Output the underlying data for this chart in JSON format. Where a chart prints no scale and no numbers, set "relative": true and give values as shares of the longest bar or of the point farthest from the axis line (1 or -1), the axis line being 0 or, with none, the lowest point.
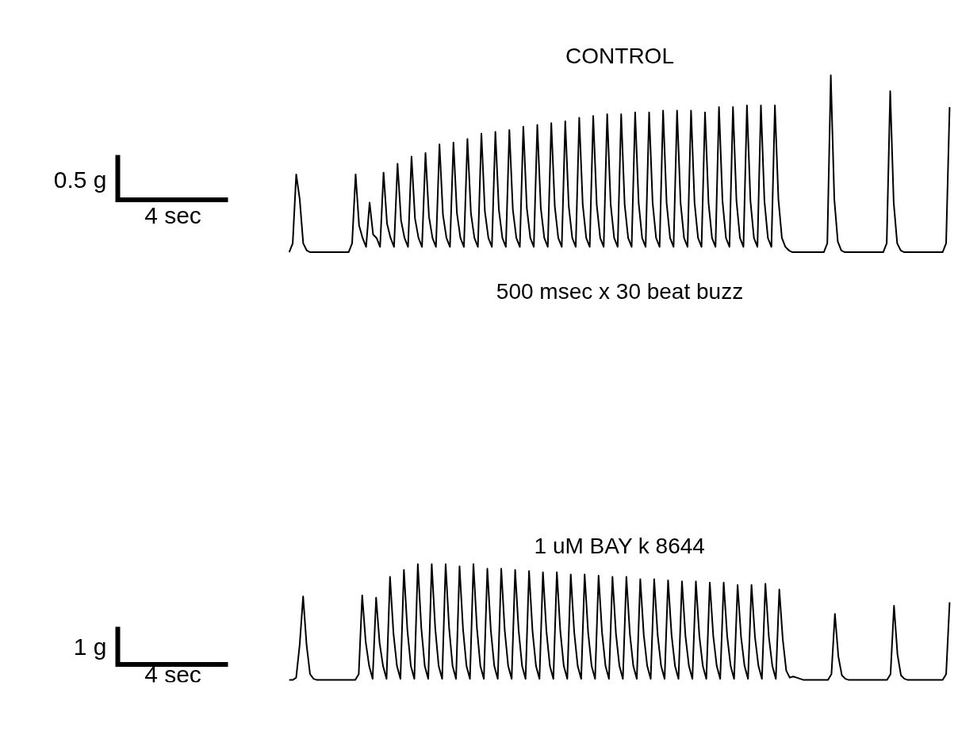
{
  "chart_data": [
    {
      "type": "line",
      "title": "CONTROL",
      "relative": true,
      "tick_labels": false,
      "annotations": [
        "0.5 g",
        "4 sec",
        "500 msec x 30 beat buzz"
      ],
      "categories": [
        null,
        null,
        null,
        null,
        null,
        null,
        null,
        null,
        null,
        null,
        null,
        null,
        null,
        null,
        null,
        null,
        null,
        null,
        null,
        null,
        null,
        null,
        null,
        null,
        null,
        null,
        null,
        null,
        null,
        null,
        null,
        null,
        null,
        null,
        null,
        null,
        null,
        null,
        null,
        null,
        null,
        null,
        null,
        null,
        null,
        null,
        null,
        null,
        null,
        null,
        null,
        null,
        null,
        null,
        null,
        null,
        null,
        null,
        null,
        null,
        null,
        null,
        null,
        null,
        null,
        null,
        null,
        null,
        null,
        null,
        null,
        null,
        null,
        null,
        null,
        null,
        null,
        null,
        null,
        null,
        null,
        null,
        null,
        null,
        null,
        null,
        null,
        null,
        null,
        null,
        null,
        null,
        null,
        null,
        null,
        null,
        null,
        null,
        null,
        null,
        null,
        null,
        null,
        null,
        null,
        null,
        null,
        null,
        null,
        null,
        null,
        null,
        null,
        null,
        null,
        null,
        null,
        null,
        null,
        null,
        null,
        null,
        null,
        null,
        null,
        null,
        null,
        null,
        null,
        null,
        null,
        null,
        null,
        null,
        null,
        null,
        null,
        null,
        null,
        null,
        null,
        null,
        null,
        null,
        null,
        null,
        null,
        null,
        null,
        null,
        null,
        null,
        null,
        null,
        null,
        null,
        null,
        null,
        null,
        null,
        null,
        null,
        null,
        null,
        null,
        null,
        null,
        null,
        null,
        null,
        null,
        null,
        null,
        null,
        null,
        null,
        null,
        null,
        null,
        null,
        null,
        null,
        null,
        null,
        null,
        null,
        null,
        null,
        null,
        null
      ],
      "series": [
        {
          "color": "#000000",
          "values": [
            0,
            0.05,
            0.44,
            0.3,
            0.05,
            0.01,
            0,
            0,
            0,
            0,
            0,
            0,
            0,
            0,
            0,
            0,
            0,
            0,
            0.05,
            0.44,
            0.15,
            0.08,
            0.03,
            0.28,
            0.1,
            0.08,
            0.03,
            0.45,
            0.16,
            0.08,
            0.03,
            0.5,
            0.18,
            0.08,
            0.03,
            0.54,
            0.19,
            0.08,
            0.03,
            0.56,
            0.2,
            0.08,
            0.03,
            0.61,
            0.21,
            0.08,
            0.03,
            0.62,
            0.22,
            0.08,
            0.03,
            0.64,
            0.22,
            0.08,
            0.03,
            0.67,
            0.23,
            0.08,
            0.03,
            0.68,
            0.24,
            0.08,
            0.03,
            0.69,
            0.24,
            0.08,
            0.03,
            0.71,
            0.25,
            0.08,
            0.03,
            0.72,
            0.25,
            0.08,
            0.03,
            0.73,
            0.26,
            0.08,
            0.03,
            0.74,
            0.26,
            0.08,
            0.03,
            0.76,
            0.27,
            0.08,
            0.03,
            0.77,
            0.27,
            0.08,
            0.03,
            0.78,
            0.27,
            0.08,
            0.03,
            0.78,
            0.27,
            0.08,
            0.03,
            0.79,
            0.28,
            0.08,
            0.03,
            0.79,
            0.28,
            0.08,
            0.03,
            0.8,
            0.28,
            0.08,
            0.03,
            0.8,
            0.28,
            0.08,
            0.03,
            0.8,
            0.28,
            0.08,
            0.03,
            0.79,
            0.28,
            0.08,
            0.03,
            0.82,
            0.29,
            0.08,
            0.03,
            0.82,
            0.29,
            0.08,
            0.03,
            0.83,
            0.29,
            0.08,
            0.03,
            0.83,
            0.29,
            0.08,
            0.03,
            0.83,
            0.3,
            0.08,
            0.03,
            0.01,
            0,
            0,
            0,
            0,
            0,
            0,
            0,
            0,
            0,
            0,
            0.05,
            1.0,
            0.3,
            0.06,
            0.01,
            0,
            0,
            0,
            0,
            0,
            0,
            0,
            0,
            0,
            0,
            0,
            0,
            0.05,
            0.91,
            0.28,
            0.05,
            0.01,
            0,
            0,
            0,
            0,
            0,
            0,
            0,
            0,
            0,
            0,
            0,
            0,
            0.05,
            0.82
          ]
        }
      ]
    },
    {
      "type": "line",
      "title": "1 uM BAY k 8644",
      "relative": true,
      "tick_labels": false,
      "annotations": [
        "1 g",
        "4 sec"
      ],
      "categories": [
        null,
        null,
        null,
        null,
        null,
        null,
        null,
        null,
        null,
        null,
        null,
        null,
        null,
        null,
        null,
        null,
        null,
        null,
        null,
        null,
        null,
        null,
        null,
        null,
        null,
        null,
        null,
        null,
        null,
        null,
        null,
        null,
        null,
        null,
        null,
        null,
        null,
        null,
        null,
        null,
        null,
        null,
        null,
        null,
        null,
        null,
        null,
        null,
        null,
        null,
        null,
        null,
        null,
        null,
        null,
        null,
        null,
        null,
        null,
        null,
        null,
        null,
        null,
        null,
        null,
        null,
        null,
        null,
        null,
        null,
        null,
        null,
        null,
        null,
        null,
        null,
        null,
        null,
        null,
        null,
        null,
        null,
        null,
        null,
        null,
        null,
        null,
        null,
        null,
        null,
        null,
        null,
        null,
        null,
        null,
        null,
        null,
        null,
        null,
        null,
        null,
        null,
        null,
        null,
        null,
        null,
        null,
        null,
        null,
        null,
        null,
        null,
        null,
        null,
        null,
        null,
        null,
        null,
        null,
        null,
        null,
        null,
        null,
        null,
        null,
        null,
        null,
        null,
        null,
        null,
        null,
        null,
        null,
        null,
        null,
        null,
        null,
        null,
        null,
        null,
        null,
        null,
        null,
        null,
        null,
        null,
        null,
        null,
        null,
        null,
        null,
        null,
        null,
        null,
        null,
        null,
        null,
        null,
        null,
        null,
        null,
        null,
        null,
        null,
        null,
        null,
        null,
        null,
        null,
        null,
        null,
        null,
        null,
        null,
        null,
        null,
        null,
        null,
        null,
        null,
        null,
        null,
        null,
        null,
        null,
        null,
        null,
        null,
        null,
        null,
        null
      ],
      "series": [
        {
          "color": "#000000",
          "values": [
            0,
            0,
            0.02,
            0.3,
            0.72,
            0.3,
            0.05,
            0.01,
            0,
            0,
            0,
            0,
            0,
            0,
            0,
            0,
            0,
            0,
            0,
            0,
            0.05,
            0.73,
            0.33,
            0.12,
            0.01,
            0.71,
            0.32,
            0.12,
            0.01,
            0.89,
            0.4,
            0.12,
            0.01,
            0.95,
            0.43,
            0.12,
            0.01,
            1.0,
            0.45,
            0.12,
            0.01,
            1.0,
            0.45,
            0.12,
            0.01,
            1.0,
            0.45,
            0.12,
            0.01,
            0.98,
            0.44,
            0.12,
            0.01,
            1.0,
            0.45,
            0.12,
            0.01,
            0.96,
            0.43,
            0.12,
            0.01,
            0.96,
            0.43,
            0.12,
            0.01,
            0.95,
            0.43,
            0.12,
            0.01,
            0.94,
            0.42,
            0.12,
            0.01,
            0.93,
            0.42,
            0.12,
            0.01,
            0.93,
            0.42,
            0.12,
            0.01,
            0.91,
            0.41,
            0.12,
            0.01,
            0.91,
            0.41,
            0.12,
            0.01,
            0.9,
            0.41,
            0.12,
            0.01,
            0.89,
            0.4,
            0.12,
            0.01,
            0.89,
            0.4,
            0.12,
            0.01,
            0.87,
            0.39,
            0.12,
            0.01,
            0.87,
            0.39,
            0.12,
            0.01,
            0.86,
            0.39,
            0.12,
            0.01,
            0.85,
            0.38,
            0.12,
            0.01,
            0.85,
            0.38,
            0.12,
            0.01,
            0.84,
            0.38,
            0.12,
            0.01,
            0.84,
            0.38,
            0.12,
            0.01,
            0.82,
            0.37,
            0.12,
            0.01,
            0.82,
            0.37,
            0.12,
            0.01,
            0.83,
            0.37,
            0.12,
            0.01,
            0.78,
            0.35,
            0.08,
            0.02,
            0.03,
            0.02,
            0.01,
            0,
            0,
            0,
            0,
            0,
            0,
            0,
            0,
            0.05,
            0.57,
            0.2,
            0.04,
            0.01,
            0,
            0,
            0,
            0,
            0,
            0,
            0,
            0,
            0,
            0,
            0,
            0,
            0.05,
            0.64,
            0.22,
            0.04,
            0.01,
            0,
            0,
            0,
            0,
            0,
            0,
            0,
            0,
            0,
            0,
            0,
            0.05,
            0.67
          ]
        }
      ]
    }
  ]
}
